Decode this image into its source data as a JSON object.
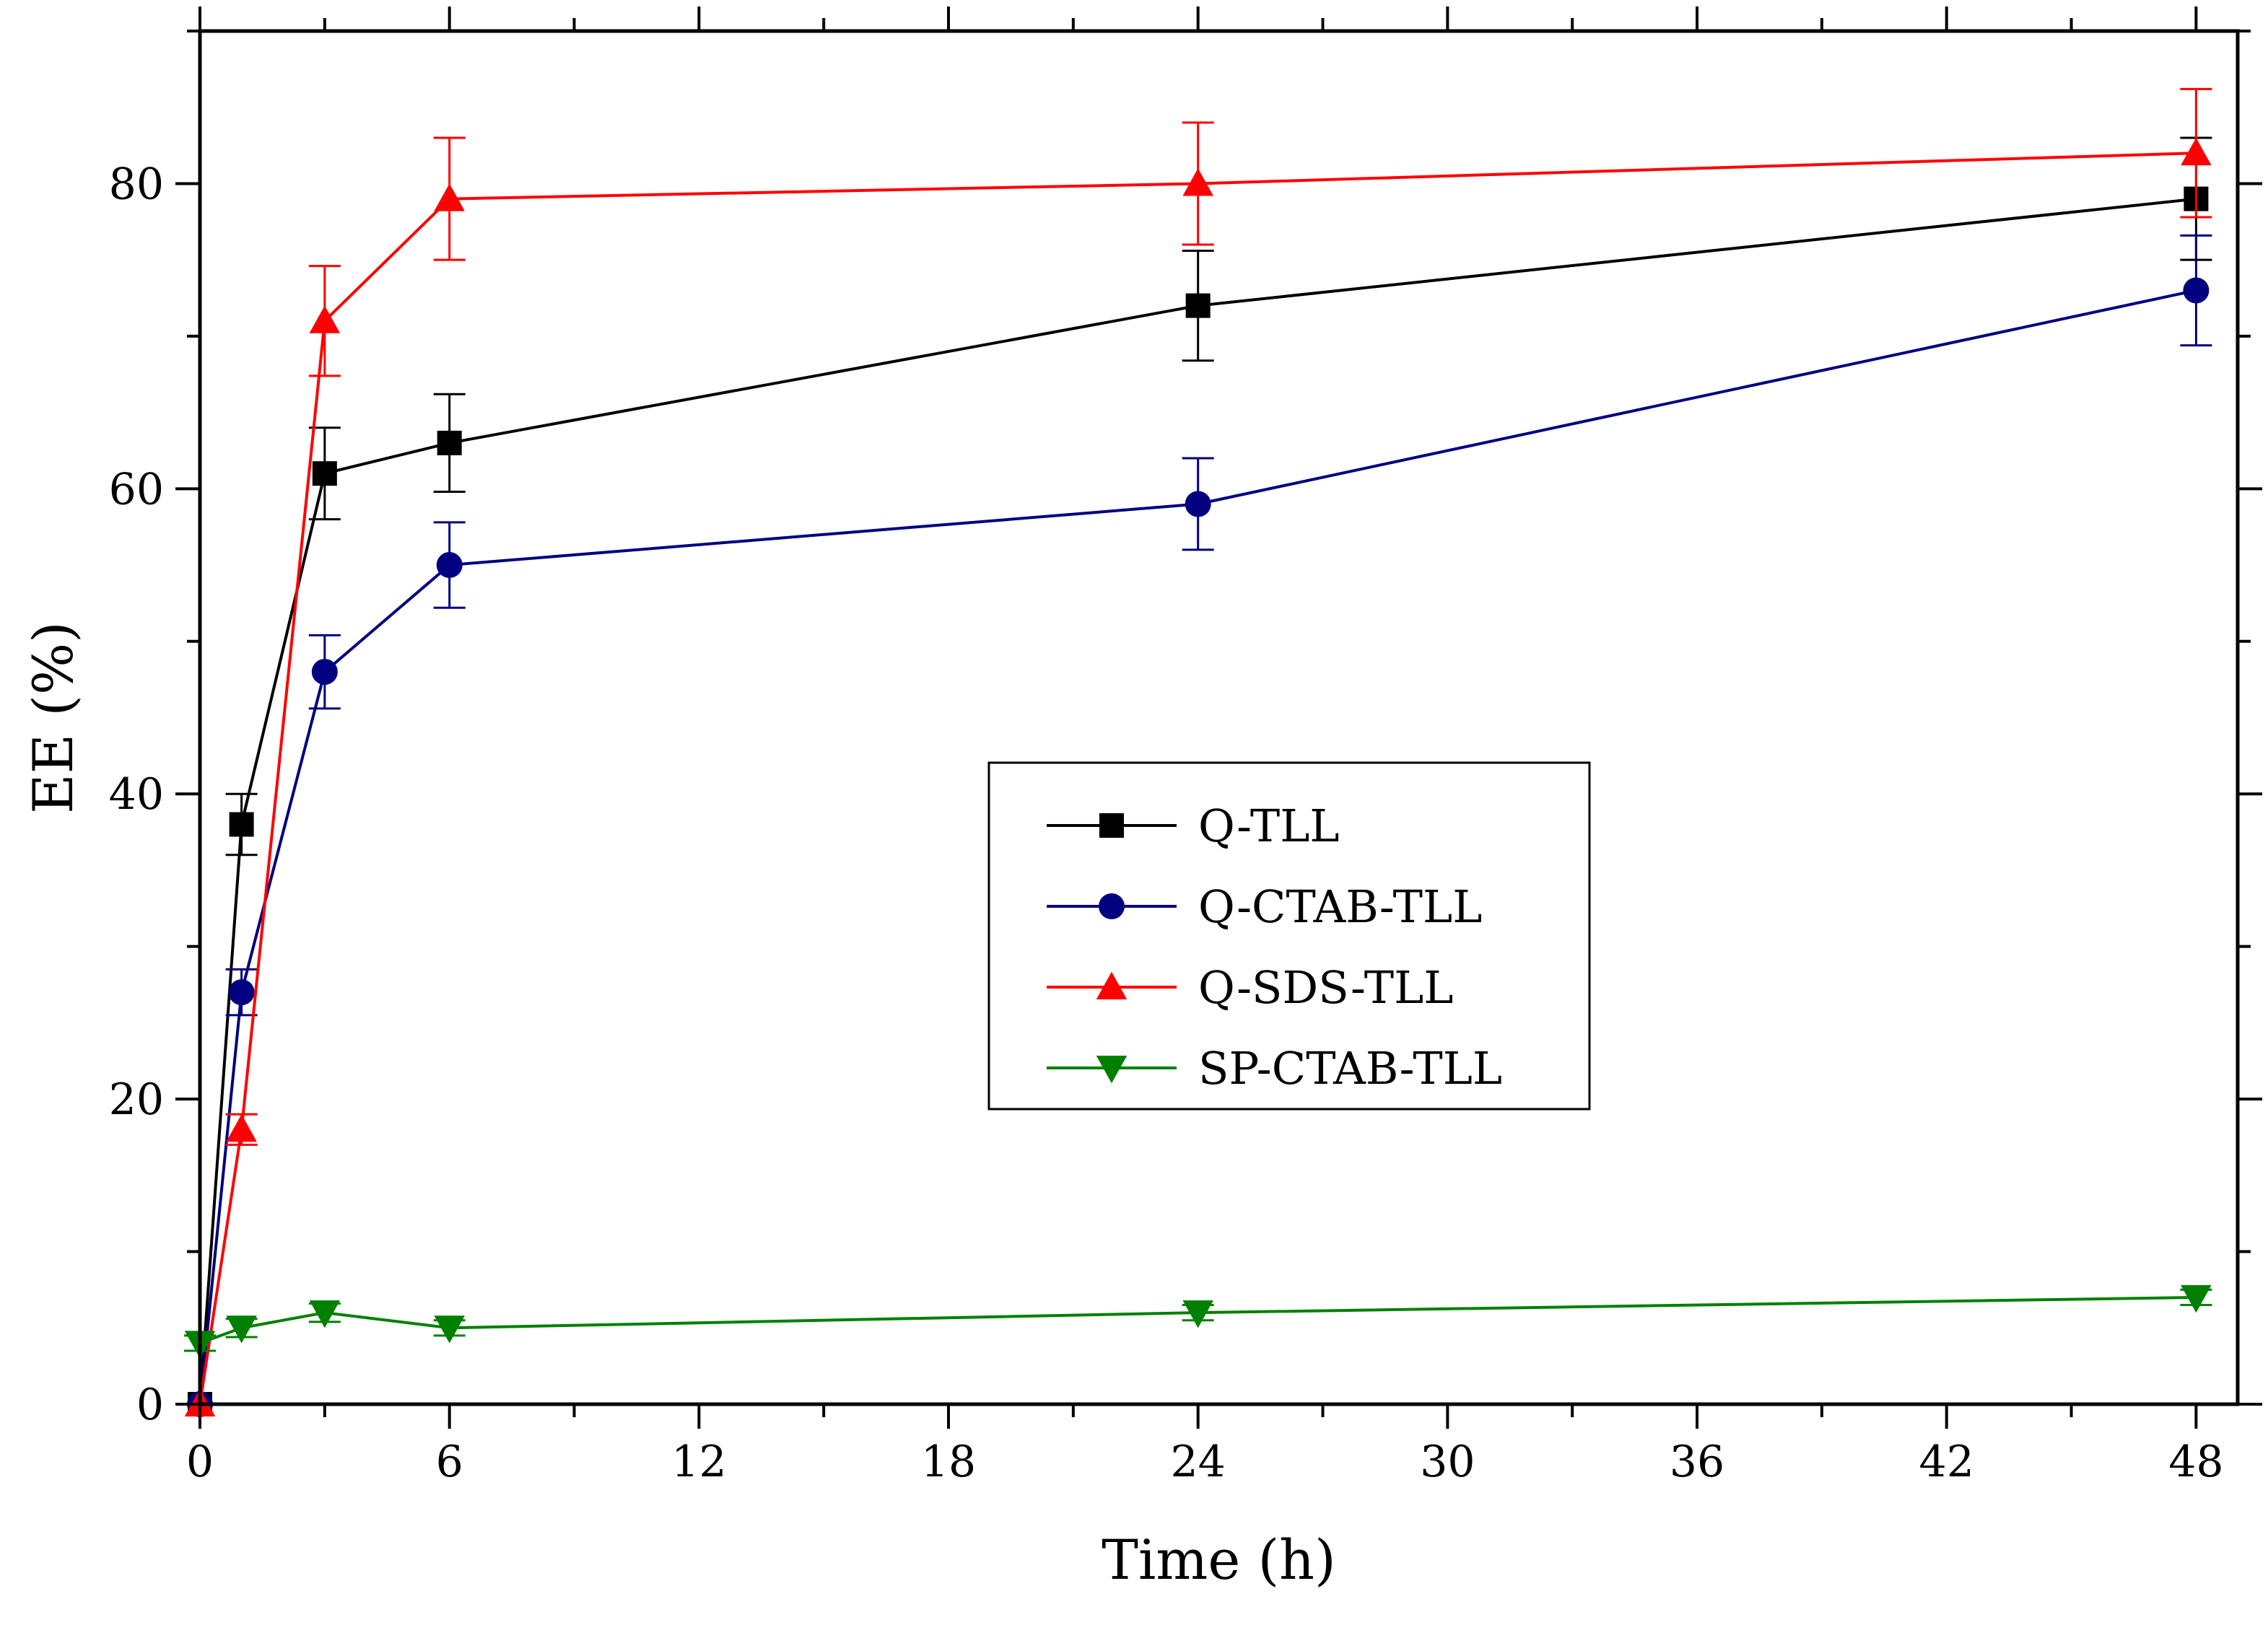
{
  "chart_data": {
    "type": "line",
    "title": "",
    "xlabel": "Time (h)",
    "ylabel": "EE (%)",
    "xlim": [
      0,
      49
    ],
    "ylim": [
      0,
      90
    ],
    "xticks": [
      0,
      6,
      12,
      18,
      24,
      30,
      36,
      42,
      48
    ],
    "yticks": [
      0,
      20,
      40,
      60,
      80
    ],
    "legend_position": "center-right",
    "grid": false,
    "series": [
      {
        "name": "Q-TLL",
        "color": "#000000",
        "marker": "square",
        "x": [
          0,
          1,
          3,
          6,
          24,
          48
        ],
        "y": [
          0,
          38,
          61,
          63,
          72,
          79
        ],
        "error": [
          0,
          2,
          3,
          3.2,
          3.6,
          4
        ]
      },
      {
        "name": "Q-CTAB-TLL",
        "color": "#000080",
        "marker": "circle",
        "x": [
          0,
          1,
          3,
          6,
          24,
          48
        ],
        "y": [
          0,
          27,
          48,
          55,
          59,
          73
        ],
        "error": [
          0,
          1.5,
          2.4,
          2.8,
          3,
          3.6
        ]
      },
      {
        "name": "Q-SDS-TLL",
        "color": "#ff0000",
        "marker": "triangle-up",
        "x": [
          0,
          1,
          3,
          6,
          24,
          48
        ],
        "y": [
          0,
          18,
          71,
          79,
          80,
          82
        ],
        "error": [
          0,
          1,
          3.6,
          4,
          4,
          4.2
        ]
      },
      {
        "name": "SP-CTAB-TLL",
        "color": "#008000",
        "marker": "triangle-down",
        "x": [
          0,
          1,
          3,
          6,
          24,
          48
        ],
        "y": [
          4,
          5,
          6,
          5,
          6,
          7
        ],
        "error": [
          0.5,
          0.6,
          0.6,
          0.5,
          0.5,
          0.5
        ]
      }
    ]
  }
}
